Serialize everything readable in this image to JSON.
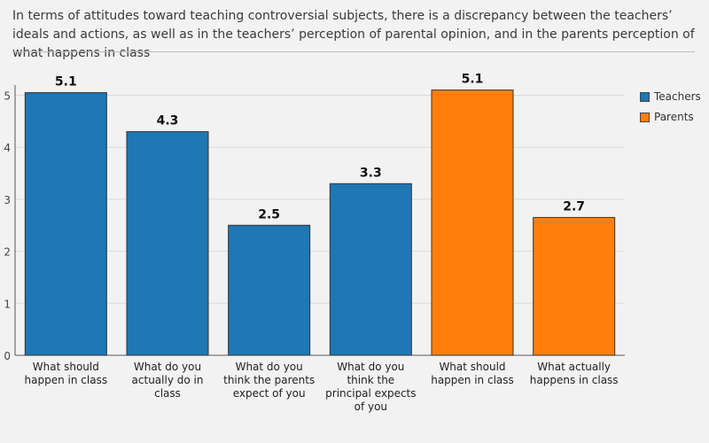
{
  "chart_data": {
    "type": "bar",
    "title": "In terms of attitudes toward teaching controversial subjects, there is a discrepancy between the teachers’ ideals and actions, as well as in the teachers’ perception of parental opinion, and in the parents perception of what happens in class",
    "categories": [
      [
        "What should",
        "happen in class"
      ],
      [
        "What do you",
        "actually do in",
        "class"
      ],
      [
        "What do you",
        "think the parents",
        "expect of you"
      ],
      [
        "What do you",
        "think the",
        "principal expects",
        "of you"
      ],
      [
        "What should",
        "happen in class"
      ],
      [
        "What actually",
        "happens in class"
      ]
    ],
    "values": [
      5.05,
      4.3,
      2.5,
      3.3,
      5.1,
      2.65
    ],
    "value_labels": [
      "5.1",
      "4.3",
      "2.5",
      "3.3",
      "5.1",
      "2.7"
    ],
    "bar_series": [
      "Teachers",
      "Teachers",
      "Teachers",
      "Teachers",
      "Parents",
      "Parents"
    ],
    "series": [
      {
        "name": "Teachers",
        "color": "#1f77b4"
      },
      {
        "name": "Parents",
        "color": "#ff7f0e"
      }
    ],
    "yticks": [
      "0",
      "1",
      "2",
      "3",
      "4",
      "5"
    ],
    "ylim": [
      0,
      5.5
    ],
    "grid": true,
    "legend": "top-right",
    "xlabel": "",
    "ylabel": ""
  }
}
